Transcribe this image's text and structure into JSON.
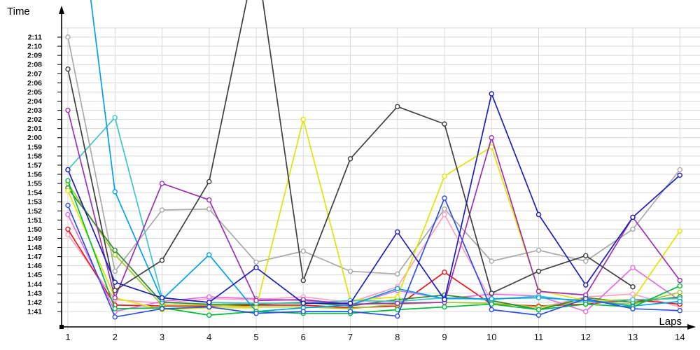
{
  "chart_data": {
    "type": "line",
    "title": "",
    "ylabel": "Time",
    "xlabel": "Laps",
    "x_ticks": [
      "1",
      "2",
      "3",
      "4",
      "5",
      "6",
      "7",
      "8",
      "9",
      "10",
      "11",
      "12",
      "13",
      "14"
    ],
    "y_ticks": [
      "1:41",
      "1:42",
      "1:43",
      "1:44",
      "1:45",
      "1:46",
      "1:47",
      "1:48",
      "1:49",
      "1:50",
      "1:51",
      "1:52",
      "1:53",
      "1:54",
      "1:55",
      "1:56",
      "1:57",
      "1:58",
      "1:59",
      "2:00",
      "2:01",
      "2:02",
      "2:03",
      "2:04",
      "2:05",
      "2:06",
      "2:07",
      "2:08",
      "2:09",
      "2:10",
      "2:11"
    ],
    "y_axis": {
      "min": "1:41",
      "max": "2:11",
      "step_seconds": 1,
      "grid": true
    },
    "legend": "none",
    "note": "values_sec are lap times in seconds (101 = 1:41); points above 135 run off the top of the plot",
    "series": [
      {
        "name": "gray",
        "color": "#A9A9A9",
        "values_sec": [
          131.0,
          105.4,
          112.1,
          112.2,
          106.4,
          107.6,
          105.4,
          105.1,
          112.2,
          106.5,
          107.7,
          106.5,
          110.0,
          116.5
        ]
      },
      {
        "name": "pink",
        "color": "#FF9FC0",
        "values_sec": [
          109.4,
          102.3,
          101.9,
          102.4,
          102.3,
          102.6,
          102.0,
          103.7,
          111.6,
          102.1,
          101.4,
          102.6,
          102.9,
          101.5
        ]
      },
      {
        "name": "red",
        "color": "#F01414",
        "values_sec": [
          110.0,
          101.7,
          101.6,
          101.6,
          101.7,
          101.7,
          101.4,
          101.6,
          105.3,
          101.8,
          101.6,
          101.8,
          102.3,
          101.8
        ]
      },
      {
        "name": "violet",
        "color": "#E36EE3",
        "values_sec": [
          111.6,
          101.0,
          102.1,
          102.6,
          102.4,
          102.2,
          101.7,
          103.3,
          102.4,
          102.9,
          102.7,
          101.0,
          105.8,
          102.2
        ]
      },
      {
        "name": "lime",
        "color": "#9ECB27",
        "values_sec": [
          115.0,
          107.2,
          101.7,
          101.7,
          101.5,
          101.5,
          101.3,
          101.8,
          102.0,
          101.9,
          101.5,
          102.1,
          101.8,
          103.1
        ]
      },
      {
        "name": "dark-green",
        "color": "#2E8B2E",
        "values_sec": [
          114.5,
          107.7,
          102.0,
          101.8,
          101.8,
          102.0,
          101.6,
          102.3,
          102.8,
          102.2,
          101.2,
          102.5,
          102.0,
          102.6
        ]
      },
      {
        "name": "yellow",
        "color": "#E3E300",
        "values_sec": [
          114.2,
          102.5,
          101.2,
          101.4,
          101.4,
          122.0,
          102.2,
          102.6,
          115.8,
          119.0,
          103.3,
          102.2,
          102.3,
          109.8
        ]
      },
      {
        "name": "turquoise",
        "color": "#3EC6C6",
        "values_sec": [
          116.5,
          122.2,
          102.5,
          102.0,
          101.9,
          101.9,
          102.2,
          102.1,
          102.5,
          102.3,
          102.7,
          102.0,
          102.3,
          102.4
        ]
      },
      {
        "name": "sky-blue",
        "color": "#00A1E8",
        "values_sec": [
          155.0,
          114.1,
          102.3,
          107.2,
          101.0,
          101.4,
          101.7,
          103.5,
          102.4,
          102.4,
          102.5,
          102.2,
          101.6,
          102.1
        ]
      },
      {
        "name": "purple",
        "color": "#9B30B4",
        "values_sec": [
          123.0,
          102.5,
          115.0,
          113.2,
          102.2,
          102.3,
          101.8,
          101.9,
          102.0,
          120.0,
          103.2,
          102.8,
          111.3,
          104.4
        ]
      },
      {
        "name": "black",
        "color": "#3F3F3F",
        "values_sec": [
          127.5,
          103.3,
          106.6,
          115.2,
          140.0,
          104.4,
          117.7,
          123.4,
          121.5,
          103.0,
          105.4,
          107.1,
          103.7
        ]
      },
      {
        "name": "green",
        "color": "#00BE3C",
        "values_sec": [
          115.3,
          101.3,
          101.4,
          100.6,
          101.0,
          100.8,
          100.8,
          101.2,
          101.5,
          101.8,
          101.2,
          101.8,
          101.5,
          103.8
        ]
      },
      {
        "name": "blue",
        "color": "#2E4FE6",
        "values_sec": [
          112.6,
          100.4,
          101.3,
          101.5,
          100.8,
          101.0,
          101.0,
          100.5,
          113.4,
          101.2,
          100.6,
          102.4,
          101.3,
          101.1
        ]
      },
      {
        "name": "navy",
        "color": "#1E1EB4",
        "values_sec": [
          116.5,
          104.2,
          102.5,
          102.0,
          105.8,
          101.9,
          101.9,
          109.7,
          102.3,
          124.8,
          111.6,
          103.9,
          111.3,
          115.9
        ]
      }
    ]
  }
}
